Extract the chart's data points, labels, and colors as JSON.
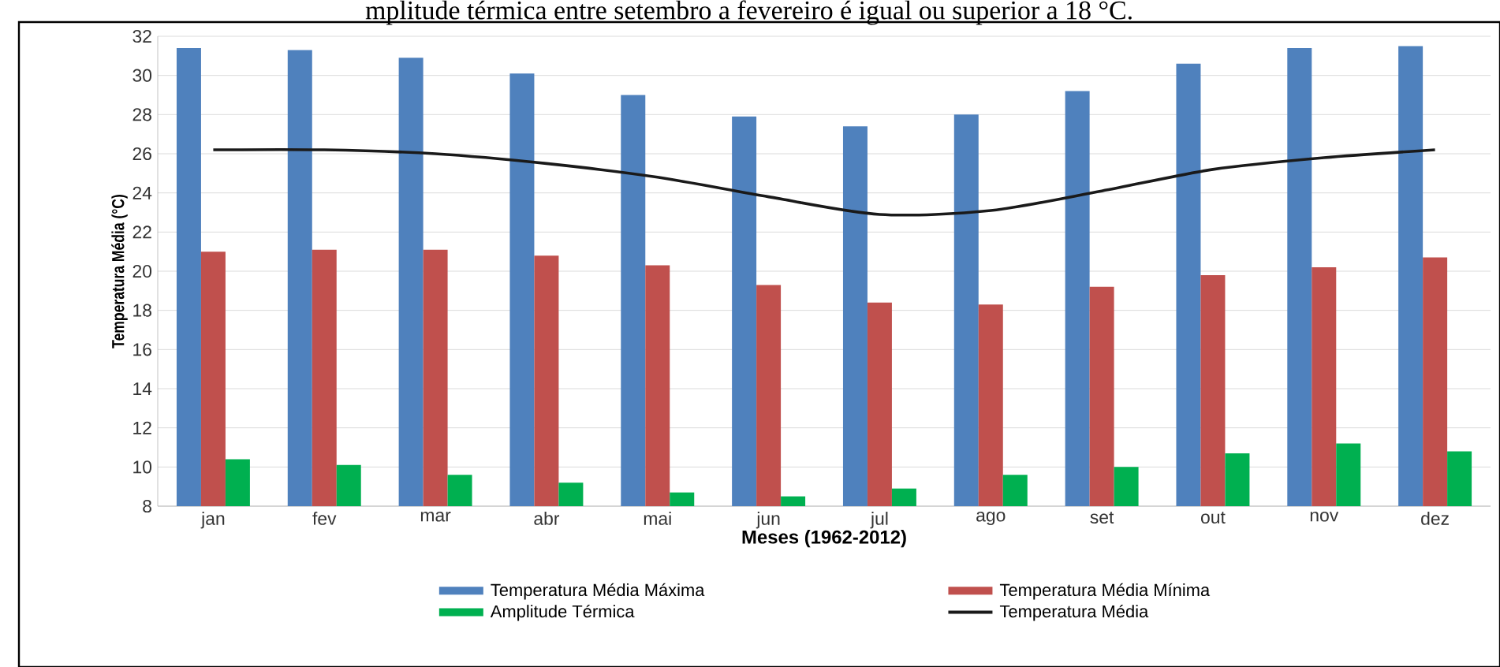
{
  "chart_data": {
    "type": "bar",
    "ylabel": "Temperatura Média (°C)",
    "xlabel": "Meses (1962-2012)",
    "annotations": [
      "mplitude térmica entre setembro a fevereiro é igual ou superior a 18 °C."
    ],
    "categories": [
      "jan",
      "fev",
      "mar",
      "abr",
      "mai",
      "jun",
      "jul",
      "ago",
      "set",
      "out",
      "nov",
      "dez"
    ],
    "series": [
      {
        "name": "Temperatura Média Máxima",
        "color": "#4f81bd",
        "values": [
          31.4,
          31.3,
          30.9,
          30.1,
          29.0,
          27.9,
          27.4,
          28.0,
          29.2,
          30.6,
          31.4,
          31.5
        ]
      },
      {
        "name": "Temperatura Média Mínima",
        "color": "#c0504d",
        "values": [
          21.0,
          21.1,
          21.1,
          20.8,
          20.3,
          19.3,
          18.4,
          18.3,
          19.2,
          19.8,
          20.2,
          20.7
        ]
      },
      {
        "name": "Amplitude Térmica",
        "color": "#00b050",
        "values": [
          10.4,
          10.1,
          9.6,
          9.2,
          8.7,
          8.5,
          8.9,
          9.6,
          10.0,
          10.7,
          11.2,
          10.8
        ]
      },
      {
        "name": "Temperatura Média",
        "type": "line",
        "color": "#1a1a1a",
        "values": [
          26.2,
          26.2,
          26.0,
          25.5,
          24.8,
          23.8,
          22.9,
          23.1,
          24.1,
          25.2,
          25.8,
          26.2
        ]
      }
    ],
    "ylim": [
      8,
      32
    ],
    "yticks": [
      8,
      10,
      12,
      14,
      16,
      18,
      20,
      22,
      24,
      26,
      28,
      30,
      32
    ],
    "grid": "y",
    "legend": "bottom"
  }
}
